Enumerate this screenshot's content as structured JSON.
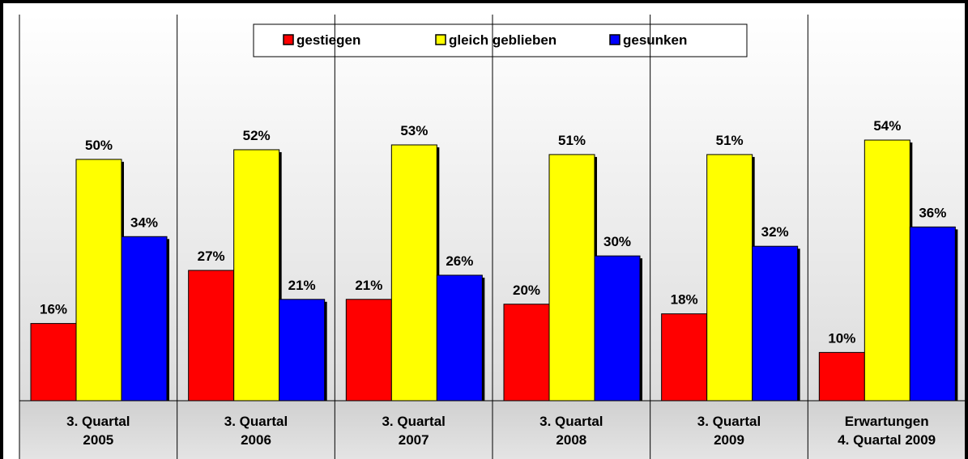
{
  "chart_data": {
    "type": "bar",
    "categories": [
      "3. Quartal\n2005",
      "3. Quartal\n2006",
      "3. Quartal\n2007",
      "3. Quartal\n2008",
      "3. Quartal\n2009",
      "Erwartungen\n4. Quartal 2009"
    ],
    "series": [
      {
        "name": "gestiegen",
        "color": "#ff0000",
        "values": [
          16,
          27,
          21,
          20,
          18,
          10
        ],
        "value_labels": [
          "16%",
          "27%",
          "21%",
          "20%",
          "18%",
          "10%"
        ]
      },
      {
        "name": "gleich geblieben",
        "color": "#ffff00",
        "values": [
          50,
          52,
          53,
          51,
          51,
          54
        ],
        "value_labels": [
          "50%",
          "52%",
          "53%",
          "51%",
          "51%",
          "54%"
        ]
      },
      {
        "name": "gesunken",
        "color": "#0000ff",
        "values": [
          34,
          21,
          26,
          30,
          32,
          36
        ],
        "value_labels": [
          "34%",
          "21%",
          "26%",
          "30%",
          "32%",
          "36%"
        ]
      }
    ],
    "ylim": [
      0,
      80
    ],
    "legend": "top"
  }
}
